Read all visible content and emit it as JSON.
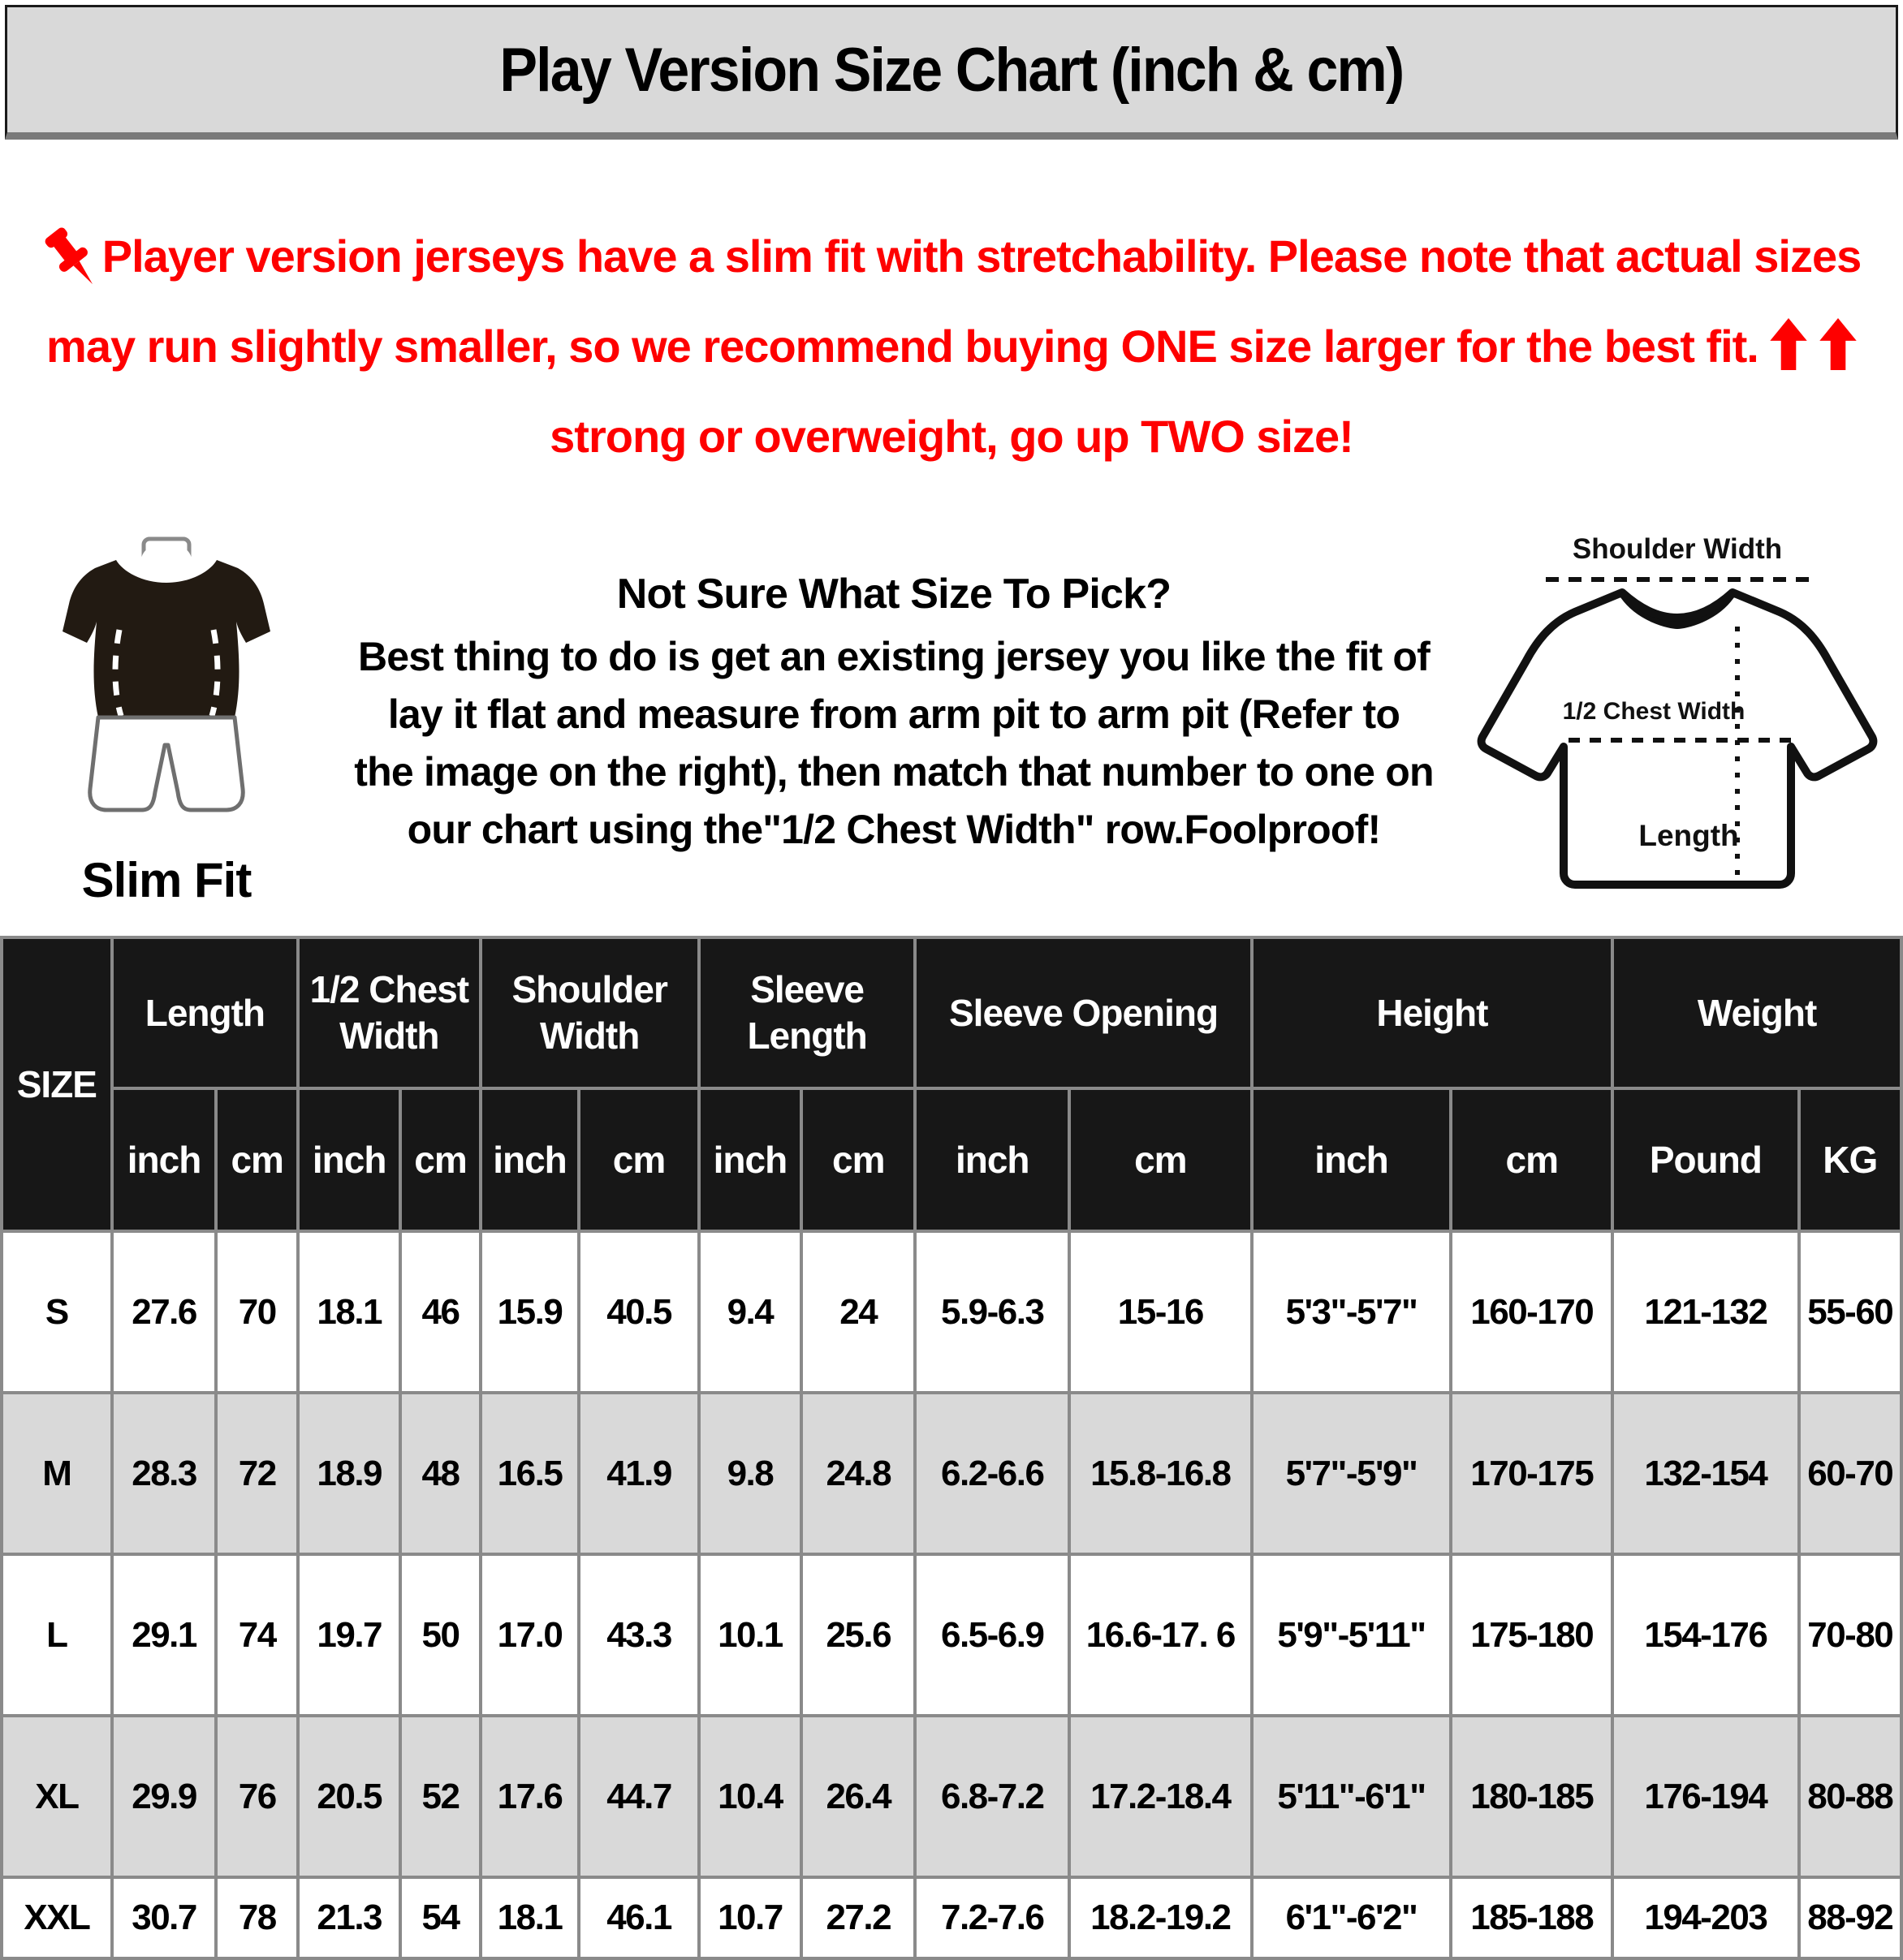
{
  "title": "Play Version Size Chart (inch & cm)",
  "red_note": {
    "part1": "Player version jerseys have a slim fit with stretchability. Please note that actual sizes may run slightly smaller, so we recommend buying ONE size larger for the best fit.",
    "part2": "strong or overweight, go up TWO size!"
  },
  "fit_figure": {
    "label": "Slim Fit"
  },
  "advice": {
    "heading": "Not Sure What Size To Pick?",
    "body": "Best thing to do is get an existing jersey you like the fit of lay it flat and measure from arm pit to arm pit (Refer to the image on the right), then match that number to one on our chart using the\"1/2 Chest Width\" row.Foolproof!"
  },
  "diagram": {
    "shoulder_label": "Shoulder Width",
    "chest_label": "1/2 Chest Width",
    "length_label": "Length"
  },
  "colors": {
    "accent_red": "#FE0000",
    "title_bar_bg": "#D9D9D9",
    "table_header_bg": "#171717",
    "row_alt_bg": "#D9D9D9",
    "grid_line": "#8A8A8A"
  },
  "table": {
    "size_header": "SIZE",
    "groups": [
      {
        "label": "Length"
      },
      {
        "label": "1/2 Chest Width"
      },
      {
        "label": "Shoulder Width"
      },
      {
        "label": "Sleeve Length"
      },
      {
        "label": "Sleeve Opening"
      },
      {
        "label": "Height"
      },
      {
        "label": "Weight"
      }
    ],
    "subheaders": [
      "inch",
      "cm",
      "inch",
      "cm",
      "inch",
      "cm",
      "inch",
      "cm",
      "inch",
      "cm",
      "inch",
      "cm",
      "Pound",
      "KG"
    ],
    "rows": [
      {
        "size": "S",
        "values": [
          "27.6",
          "70",
          "18.1",
          "46",
          "15.9",
          "40.5",
          "9.4",
          "24",
          "5.9-6.3",
          "15-16",
          "5'3\"-5'7\"",
          "160-170",
          "121-132",
          "55-60"
        ]
      },
      {
        "size": "M",
        "values": [
          "28.3",
          "72",
          "18.9",
          "48",
          "16.5",
          "41.9",
          "9.8",
          "24.8",
          "6.2-6.6",
          "15.8-16.8",
          "5'7\"-5'9\"",
          "170-175",
          "132-154",
          "60-70"
        ]
      },
      {
        "size": "L",
        "values": [
          "29.1",
          "74",
          "19.7",
          "50",
          "17.0",
          "43.3",
          "10.1",
          "25.6",
          "6.5-6.9",
          "16.6-17. 6",
          "5'9\"-5'11\"",
          "175-180",
          "154-176",
          "70-80"
        ]
      },
      {
        "size": "XL",
        "values": [
          "29.9",
          "76",
          "20.5",
          "52",
          "17.6",
          "44.7",
          "10.4",
          "26.4",
          "6.8-7.2",
          "17.2-18.4",
          "5'11\"-6'1\"",
          "180-185",
          "176-194",
          "80-88"
        ]
      },
      {
        "size": "XXL",
        "values": [
          "30.7",
          "78",
          "21.3",
          "54",
          "18.1",
          "46.1",
          "10.7",
          "27.2",
          "7.2-7.6",
          "18.2-19.2",
          "6'1\"-6'2\"",
          "185-188",
          "194-203",
          "88-92"
        ]
      }
    ]
  },
  "chart_data": {
    "type": "table",
    "title": "Play Version Size Chart (inch & cm)",
    "columns": [
      "SIZE",
      "Length inch",
      "Length cm",
      "1/2 Chest Width inch",
      "1/2 Chest Width cm",
      "Shoulder Width inch",
      "Shoulder Width cm",
      "Sleeve Length inch",
      "Sleeve Length cm",
      "Sleeve Opening inch",
      "Sleeve Opening cm",
      "Height inch",
      "Height cm",
      "Weight Pound",
      "Weight KG"
    ],
    "rows": [
      [
        "S",
        "27.6",
        "70",
        "18.1",
        "46",
        "15.9",
        "40.5",
        "9.4",
        "24",
        "5.9-6.3",
        "15-16",
        "5'3\"-5'7\"",
        "160-170",
        "121-132",
        "55-60"
      ],
      [
        "M",
        "28.3",
        "72",
        "18.9",
        "48",
        "16.5",
        "41.9",
        "9.8",
        "24.8",
        "6.2-6.6",
        "15.8-16.8",
        "5'7\"-5'9\"",
        "170-175",
        "132-154",
        "60-70"
      ],
      [
        "L",
        "29.1",
        "74",
        "19.7",
        "50",
        "17.0",
        "43.3",
        "10.1",
        "25.6",
        "6.5-6.9",
        "16.6-17. 6",
        "5'9\"-5'11\"",
        "175-180",
        "154-176",
        "70-80"
      ],
      [
        "XL",
        "29.9",
        "76",
        "20.5",
        "52",
        "17.6",
        "44.7",
        "10.4",
        "26.4",
        "6.8-7.2",
        "17.2-18.4",
        "5'11\"-6'1\"",
        "180-185",
        "176-194",
        "80-88"
      ],
      [
        "XXL",
        "30.7",
        "78",
        "21.3",
        "54",
        "18.1",
        "46.1",
        "10.7",
        "27.2",
        "7.2-7.6",
        "18.2-19.2",
        "6'1\"-6'2\"",
        "185-188",
        "194-203",
        "88-92"
      ]
    ]
  }
}
